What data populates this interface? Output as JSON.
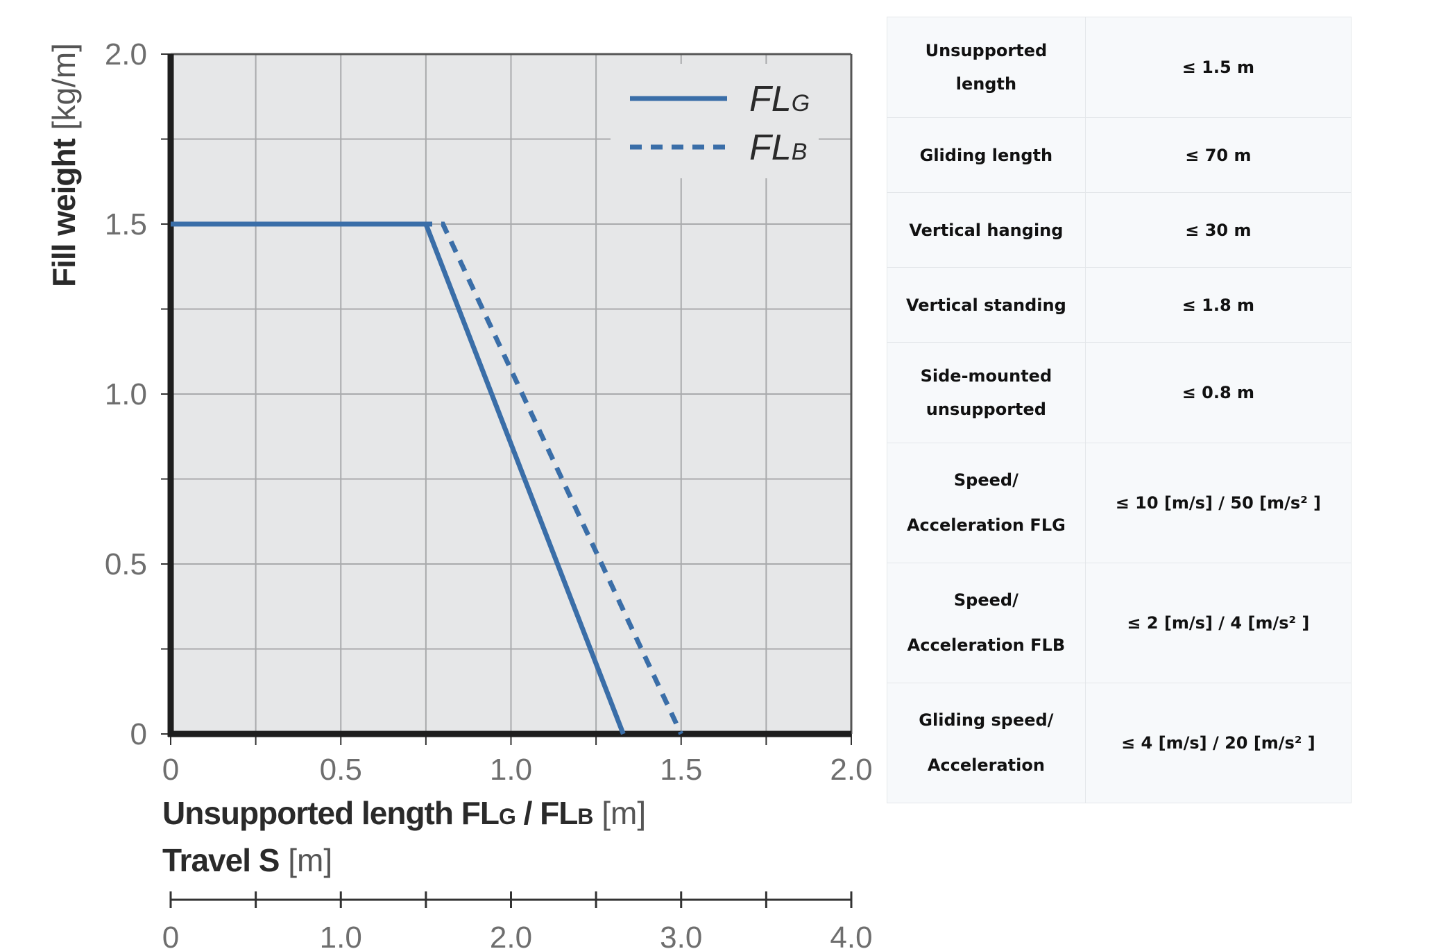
{
  "chart_data": {
    "type": "line",
    "xlabel_main": "Unsupported length FL",
    "xlabel_sub1": "G",
    "xlabel_mid": " / FL",
    "xlabel_sub2": "B",
    "xlabel_unit": " [m]",
    "ylabel_main": "Fill weight",
    "ylabel_unit": " [kg/m]",
    "xlim": [
      0,
      2.0
    ],
    "ylim": [
      0,
      2.0
    ],
    "x_ticks": [
      "0",
      "0.5",
      "1.0",
      "1.5",
      "2.0"
    ],
    "y_ticks": [
      "0",
      "0.5",
      "1.0",
      "1.5",
      "2.0"
    ],
    "grid": true,
    "legend_position": "top-right",
    "series": [
      {
        "name": "FL",
        "name_sub": "G",
        "style": "solid",
        "color": "#3a6ea8",
        "x": [
          0,
          0.75,
          1.33
        ],
        "y": [
          1.5,
          1.5,
          0
        ]
      },
      {
        "name": "FL",
        "name_sub": "B",
        "style": "dashed",
        "color": "#3a6ea8",
        "x": [
          0,
          0.8,
          1.5
        ],
        "y": [
          1.5,
          1.5,
          0
        ]
      }
    ],
    "secondary_axis": {
      "label_main": "Travel S",
      "label_unit": " [m]",
      "range": [
        0,
        4.0
      ],
      "ticks": [
        "0",
        "1.0",
        "2.0",
        "3.0",
        "4.0"
      ]
    }
  },
  "table": {
    "rows": [
      {
        "label_lines": [
          "Unsupported",
          "length"
        ],
        "value": "≤ 1.5 m"
      },
      {
        "label_lines": [
          "Gliding length"
        ],
        "value": "≤ 70 m"
      },
      {
        "label_lines": [
          "Vertical hanging"
        ],
        "value": "≤ 30 m"
      },
      {
        "label_lines": [
          "Vertical standing"
        ],
        "value": "≤ 1.8 m"
      },
      {
        "label_lines": [
          "Side-mounted",
          "unsupported"
        ],
        "value": "≤ 0.8 m"
      },
      {
        "label_lines": [
          "Speed/",
          "Acceleration FLG"
        ],
        "value": "≤ 10 [m/s] / 50 [m/s² ]"
      },
      {
        "label_lines": [
          "Speed/",
          "Acceleration FLB"
        ],
        "value": "≤ 2 [m/s] / 4 [m/s² ]"
      },
      {
        "label_lines": [
          "Gliding speed/",
          "Acceleration"
        ],
        "value": "≤ 4 [m/s] / 20 [m/s² ]"
      }
    ]
  }
}
